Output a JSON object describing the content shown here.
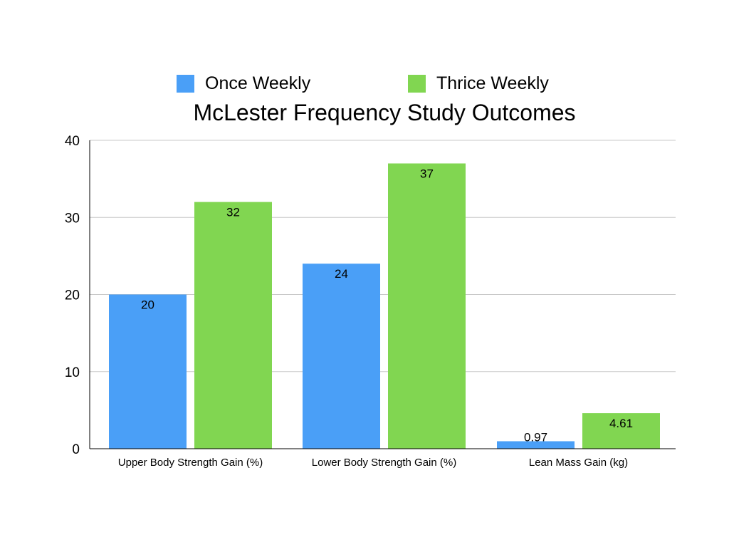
{
  "chart_data": {
    "type": "bar",
    "title": "McLester Frequency Study Outcomes",
    "xlabel": "",
    "ylabel": "",
    "categories": [
      "Upper Body Strength Gain (%)",
      "Lower Body Strength Gain (%)",
      "Lean Mass Gain (kg)"
    ],
    "series": [
      {
        "name": "Once Weekly",
        "values": [
          20,
          24,
          0.97
        ],
        "color": "#4a9ff7"
      },
      {
        "name": "Thrice Weekly",
        "values": [
          32,
          37,
          4.61
        ],
        "color": "#81d651"
      }
    ],
    "ylim": [
      0,
      40
    ],
    "yticks": [
      0,
      10,
      20,
      30,
      40
    ],
    "grid": true,
    "legend_position": "top",
    "data_labels": true
  }
}
